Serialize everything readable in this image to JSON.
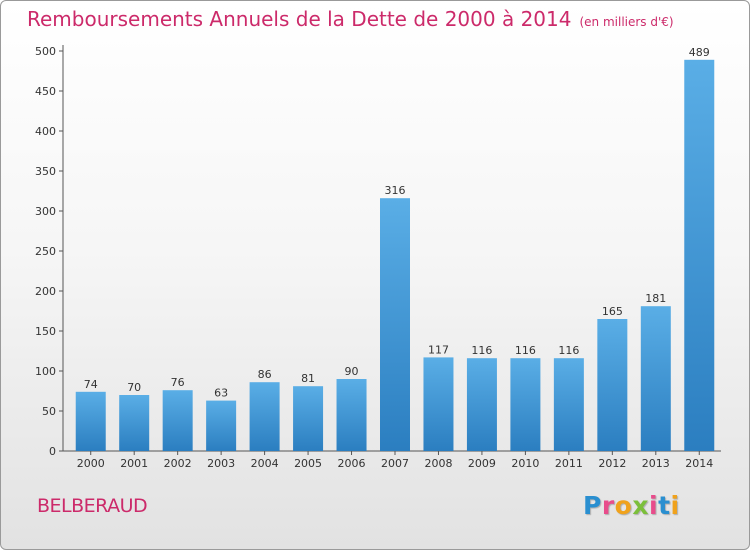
{
  "header": {
    "title": "Remboursements Annuels de la Dette de 2000 à 2014",
    "unit": "(en milliers d'€)"
  },
  "footer": {
    "place": "BELBERAUD",
    "logo": "Proxiti",
    "logo_colors": [
      "#2a8fd0",
      "#e84c8b",
      "#f0a21c",
      "#7bbf3a",
      "#e84c8b",
      "#2a8fd0",
      "#f0a21c"
    ]
  },
  "chart_data": {
    "type": "bar",
    "title": "Remboursements Annuels de la Dette de 2000 à 2014",
    "categories": [
      "2000",
      "2001",
      "2002",
      "2003",
      "2004",
      "2005",
      "2006",
      "2007",
      "2008",
      "2009",
      "2010",
      "2011",
      "2012",
      "2013",
      "2014"
    ],
    "values": [
      74,
      70,
      76,
      63,
      86,
      81,
      90,
      316,
      117,
      116,
      116,
      116,
      165,
      181,
      489
    ],
    "ylim": [
      0,
      500
    ],
    "yticks": [
      0,
      50,
      100,
      150,
      200,
      250,
      300,
      350,
      400,
      450,
      500
    ],
    "grid": false,
    "bar_color_light": "#5aaee6",
    "bar_color_dark": "#2b7ec0"
  }
}
